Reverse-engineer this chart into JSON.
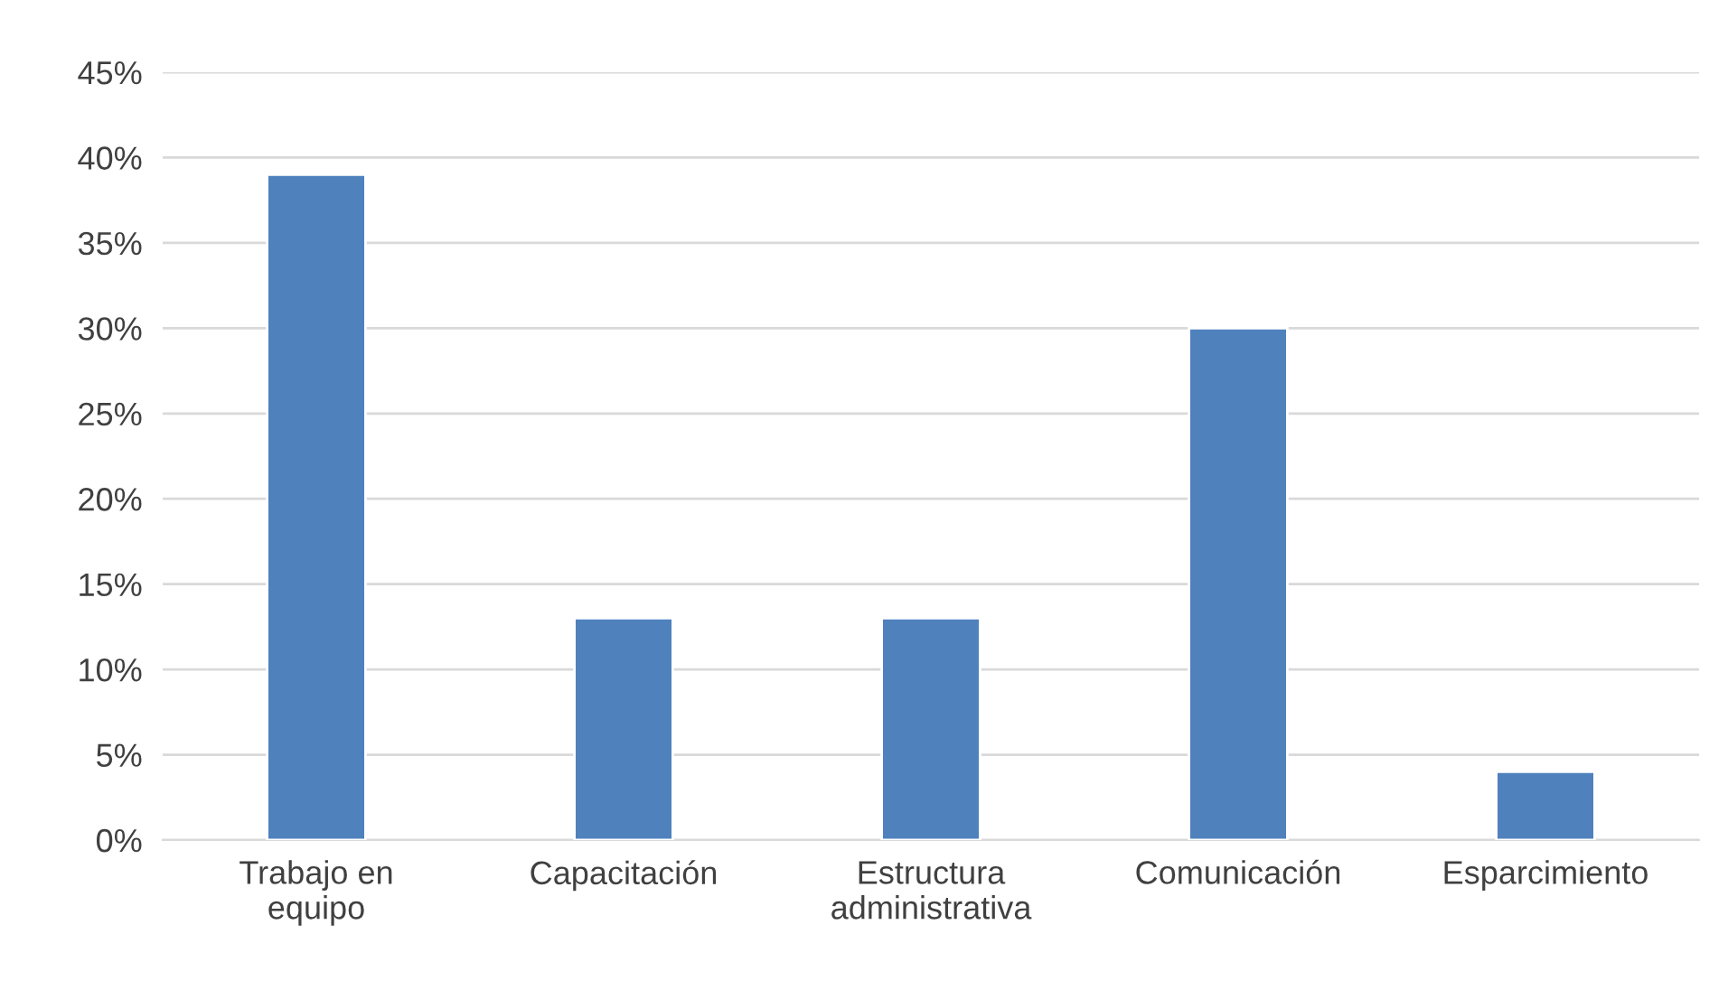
{
  "chart_data": {
    "type": "bar",
    "categories": [
      "Trabajo en\nequipo",
      "Capacitación",
      "Estructura\nadministrativa",
      "Comunicación",
      "Esparcimiento"
    ],
    "values": [
      39,
      13,
      13,
      30,
      4
    ],
    "color": "#4f81bd",
    "ylim": [
      0,
      45
    ],
    "yticks": [
      {
        "value": 0,
        "label": "0%"
      },
      {
        "value": 5,
        "label": "5%"
      },
      {
        "value": 10,
        "label": "10%"
      },
      {
        "value": 15,
        "label": "15%"
      },
      {
        "value": 20,
        "label": "20%"
      },
      {
        "value": 25,
        "label": "25%"
      },
      {
        "value": 30,
        "label": "30%"
      },
      {
        "value": 35,
        "label": "35%"
      },
      {
        "value": 40,
        "label": "40%"
      },
      {
        "value": 45,
        "label": "45%"
      }
    ],
    "grid": "y"
  }
}
